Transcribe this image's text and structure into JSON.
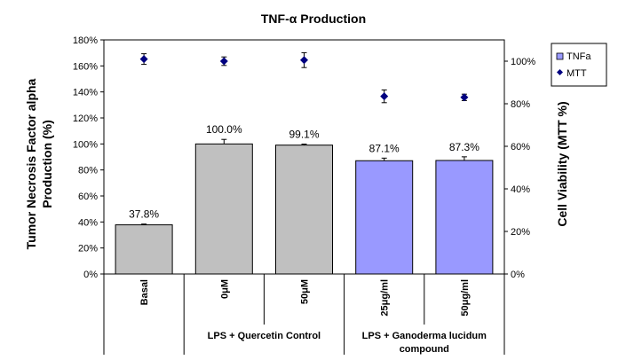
{
  "chart_data": {
    "type": "bar",
    "title": "TNF-α Production",
    "ylabel_left": [
      "Tumor Necrosis Factor alpha",
      "Production (%)"
    ],
    "ylabel_right": "Cell Viability (MTT %)",
    "categories": [
      "Basal",
      "0μM",
      "50μM",
      "25μg/ml",
      "50μg/ml"
    ],
    "groups": [
      {
        "label": "LPS + Quercetin Control",
        "categories": [
          "0μM",
          "50μM"
        ]
      },
      {
        "label": "LPS + Ganoderma lucidum compound",
        "label_lines": [
          "LPS + Ganoderma lucidum",
          "compound"
        ],
        "categories": [
          "25μg/ml",
          "50μg/ml"
        ]
      }
    ],
    "ylim_left": [
      0,
      180
    ],
    "ylim_right": [
      0,
      110
    ],
    "left_ticks": [
      "0%",
      "20%",
      "40%",
      "60%",
      "80%",
      "100%",
      "120%",
      "140%",
      "160%",
      "180%"
    ],
    "right_ticks": [
      "0%",
      "20%",
      "40%",
      "60%",
      "80%",
      "100%"
    ],
    "series": [
      {
        "name": "TNFa",
        "axis": "left",
        "kind": "bar",
        "values": [
          37.8,
          100.0,
          99.1,
          87.1,
          87.3
        ],
        "errors": [
          0.6,
          3.5,
          0.8,
          2.0,
          2.8
        ],
        "labels": [
          "37.8%",
          "100.0%",
          "99.1%",
          "87.1%",
          "87.3%"
        ],
        "colors": [
          "#c0c0c0",
          "#c0c0c0",
          "#c0c0c0",
          "#9999ff",
          "#9999ff"
        ]
      },
      {
        "name": "MTT",
        "axis": "right",
        "kind": "point",
        "values": [
          101,
          100,
          100.5,
          83.5,
          83
        ],
        "errors": [
          2.5,
          2.0,
          3.5,
          3.0,
          1.5
        ],
        "color": "#000080"
      }
    ],
    "legend": {
      "position": "top-right",
      "entries": [
        "TNFa",
        "MTT"
      ]
    },
    "grid": false
  }
}
